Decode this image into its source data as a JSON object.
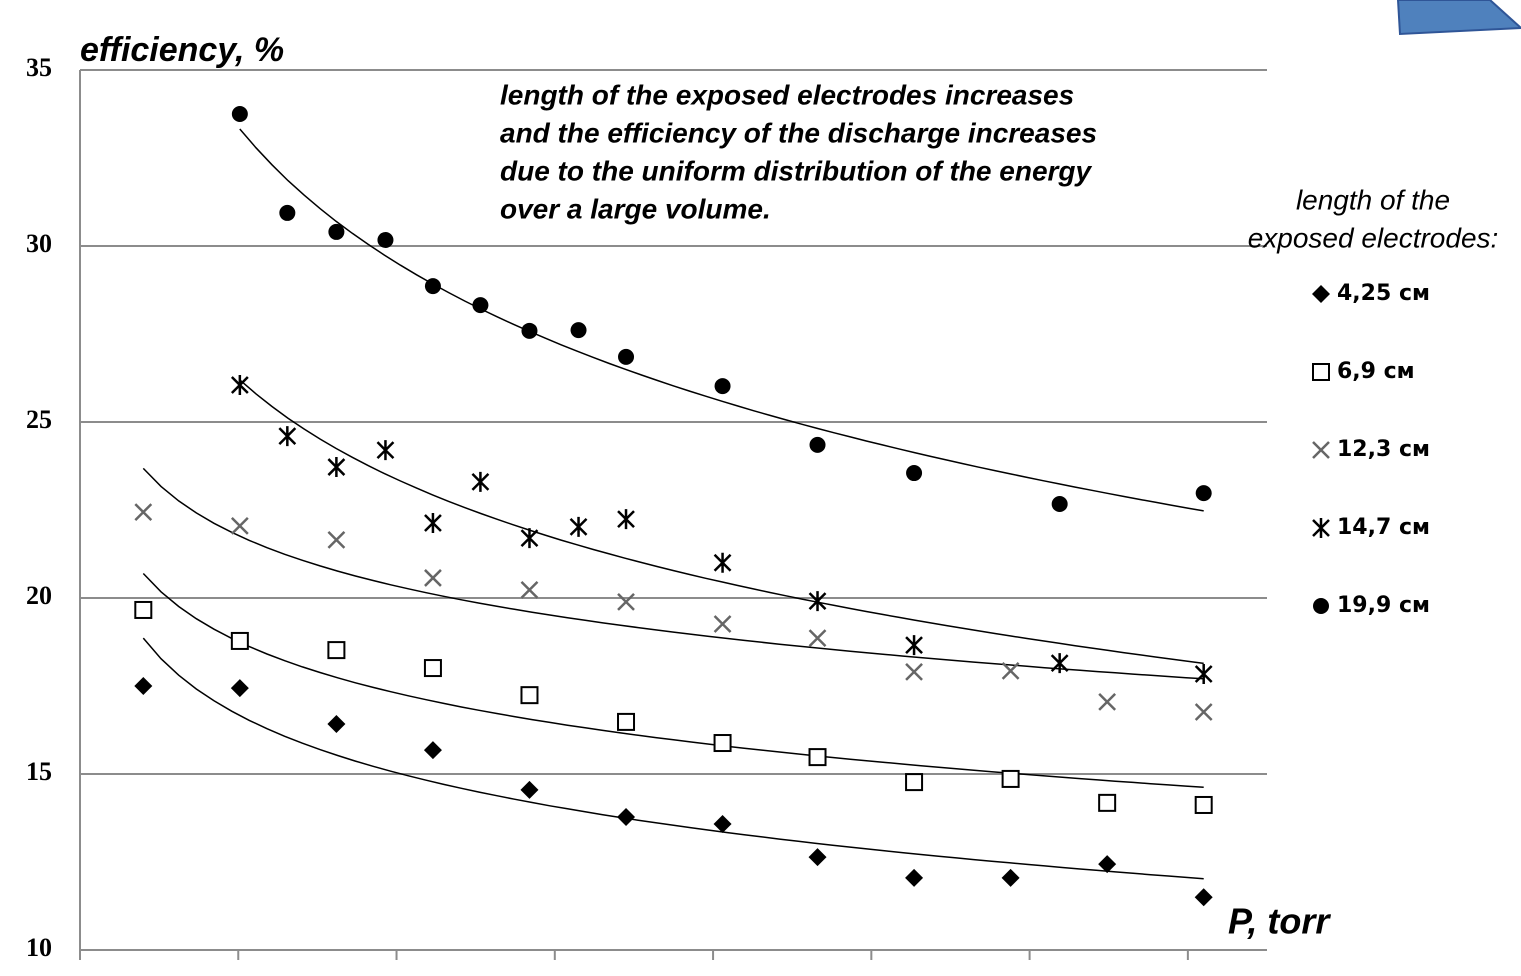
{
  "chart_data": {
    "type": "scatter",
    "y_label": "efficiency, %",
    "x_label": "P, torr",
    "annotation": [
      "length of the exposed electrodes increases",
      "and the efficiency of the discharge increases",
      "due to the uniform distribution of the energy",
      "over a large volume."
    ],
    "legend_title": [
      "length of the",
      "exposed electrodes:"
    ],
    "xlim": [
      0,
      7.5
    ],
    "xticks": [
      0,
      1,
      2,
      3,
      4,
      5,
      6,
      7
    ],
    "ylim": [
      10,
      35
    ],
    "yticks": [
      10,
      15,
      20,
      25,
      30,
      35
    ],
    "grid": true,
    "trendline": "log",
    "series": [
      {
        "name": "4,25 см",
        "marker": "diamond",
        "color": "#000000",
        "x": [
          0.4,
          1.01,
          1.62,
          2.23,
          2.84,
          3.45,
          4.06,
          4.66,
          5.27,
          5.88,
          6.49,
          7.1
        ],
        "values": [
          17.5,
          17.44,
          16.42,
          15.68,
          14.55,
          13.78,
          13.58,
          12.64,
          12.05,
          12.05,
          12.44,
          11.5
        ]
      },
      {
        "name": "6,9 см",
        "marker": "square",
        "color": "#000000",
        "x": [
          0.4,
          1.01,
          1.62,
          2.23,
          2.84,
          3.45,
          4.06,
          4.66,
          5.27,
          5.88,
          6.49,
          7.1
        ],
        "values": [
          19.66,
          18.78,
          18.52,
          18.01,
          17.24,
          16.48,
          15.88,
          15.48,
          14.77,
          14.86,
          14.18,
          14.12
        ]
      },
      {
        "name": "12,3 см",
        "marker": "cross",
        "color": "#666666",
        "x": [
          0.4,
          1.01,
          1.62,
          2.23,
          2.84,
          3.45,
          4.06,
          4.66,
          5.27,
          5.88,
          6.49,
          7.1
        ],
        "values": [
          22.44,
          22.05,
          21.65,
          20.57,
          20.23,
          19.89,
          19.26,
          18.86,
          17.9,
          17.93,
          17.05,
          16.76
        ]
      },
      {
        "name": "14,7 см",
        "marker": "star",
        "color": "#000000",
        "x": [
          1.01,
          1.31,
          1.62,
          1.93,
          2.23,
          2.53,
          2.84,
          3.15,
          3.45,
          4.06,
          4.66,
          5.27,
          6.19,
          7.1
        ],
        "values": [
          26.05,
          24.6,
          23.72,
          24.2,
          22.13,
          23.3,
          21.7,
          22.02,
          22.24,
          21.0,
          19.91,
          18.66,
          18.15,
          17.84
        ]
      },
      {
        "name": "19,9 см",
        "marker": "circle",
        "color": "#000000",
        "x": [
          1.01,
          1.31,
          1.62,
          1.93,
          2.23,
          2.53,
          2.84,
          3.15,
          3.45,
          4.06,
          4.66,
          5.27,
          6.19,
          7.1
        ],
        "values": [
          33.75,
          30.94,
          30.4,
          30.17,
          28.86,
          28.32,
          27.59,
          27.61,
          26.85,
          26.02,
          24.35,
          23.55,
          22.67,
          22.98
        ]
      }
    ]
  }
}
